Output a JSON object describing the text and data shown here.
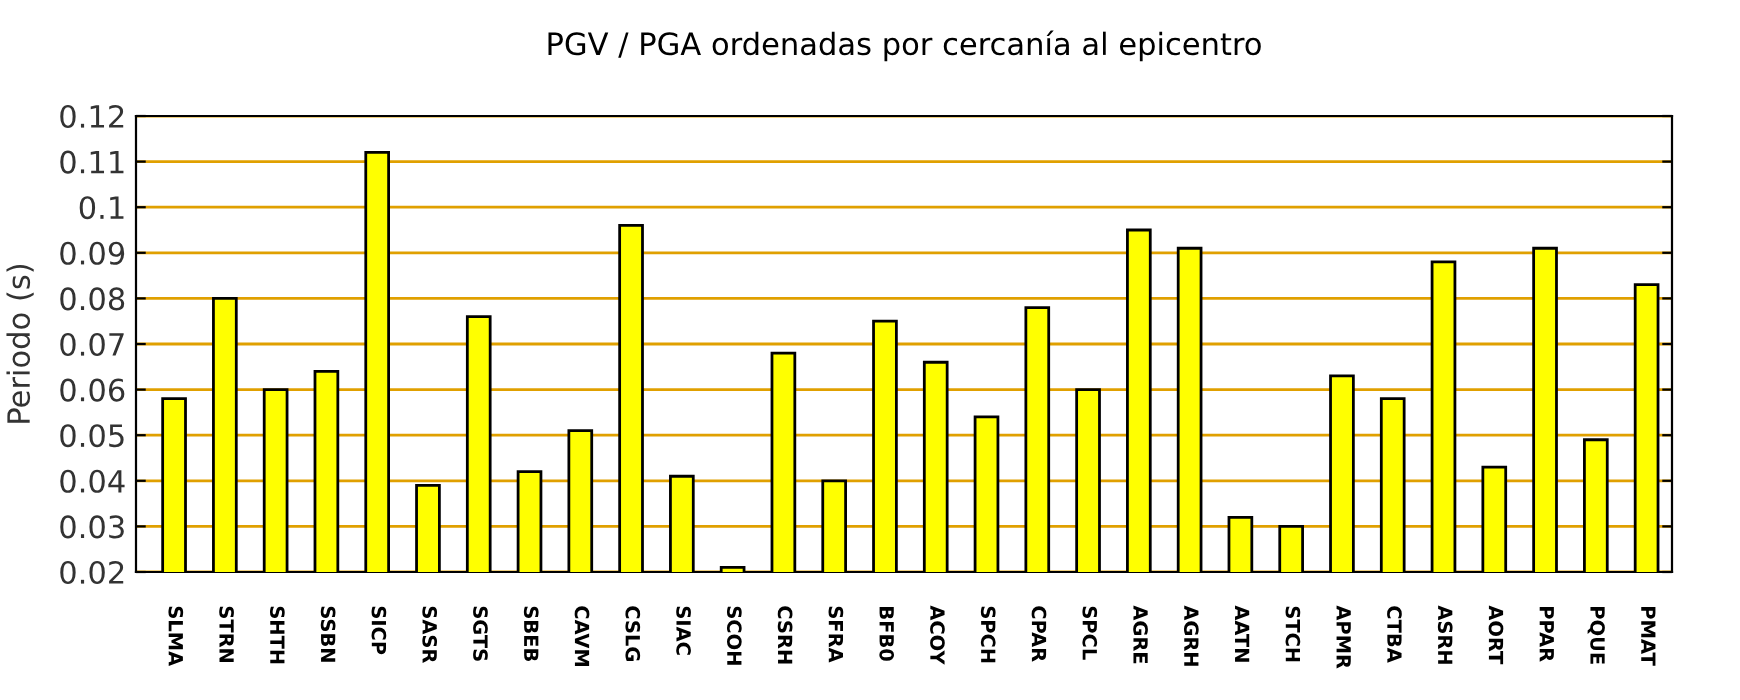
{
  "chart_data": {
    "type": "bar",
    "title": "PGV / PGA ordenadas por cercanía al epicentro",
    "ylabel": "Periodo (s)",
    "categories": [
      "SLMA",
      "STRN",
      "SHTH",
      "SSBN",
      "SICP",
      "SASR",
      "SGTS",
      "SBEB",
      "CAVM",
      "CSLG",
      "SIAC",
      "SCOH",
      "CSRH",
      "SFRA",
      "BFB0",
      "ACOY",
      "SPCH",
      "CPAR",
      "SPCL",
      "AGRE",
      "AGRH",
      "AATN",
      "STCH",
      "APMR",
      "CTBA",
      "ASRH",
      "AORT",
      "PPAR",
      "PQUE",
      "PMAT"
    ],
    "values": [
      0.058,
      0.08,
      0.06,
      0.064,
      0.112,
      0.039,
      0.076,
      0.042,
      0.051,
      0.096,
      0.041,
      0.021,
      0.068,
      0.04,
      0.075,
      0.066,
      0.054,
      0.078,
      0.06,
      0.095,
      0.091,
      0.032,
      0.03,
      0.063,
      0.058,
      0.088,
      0.043,
      0.091,
      0.049,
      0.083
    ],
    "color": "#ffff00",
    "grid": "y",
    "ylim": [
      0.02,
      0.12
    ],
    "yticks": [
      0.02,
      0.03,
      0.04,
      0.05,
      0.06,
      0.07,
      0.08,
      0.09,
      0.1,
      0.11,
      0.12
    ]
  }
}
